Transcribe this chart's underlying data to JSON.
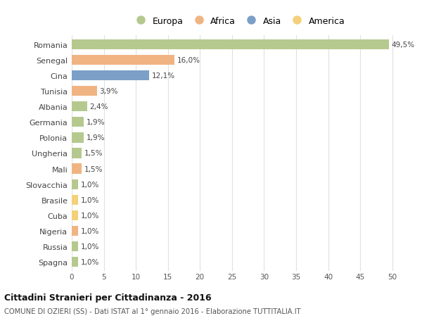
{
  "countries": [
    "Romania",
    "Senegal",
    "Cina",
    "Tunisia",
    "Albania",
    "Germania",
    "Polonia",
    "Ungheria",
    "Mali",
    "Slovacchia",
    "Brasile",
    "Cuba",
    "Nigeria",
    "Russia",
    "Spagna"
  ],
  "values": [
    49.5,
    16.0,
    12.1,
    3.9,
    2.4,
    1.9,
    1.9,
    1.5,
    1.5,
    1.0,
    1.0,
    1.0,
    1.0,
    1.0,
    1.0
  ],
  "labels": [
    "49,5%",
    "16,0%",
    "12,1%",
    "3,9%",
    "2,4%",
    "1,9%",
    "1,9%",
    "1,5%",
    "1,5%",
    "1,0%",
    "1,0%",
    "1,0%",
    "1,0%",
    "1,0%",
    "1,0%"
  ],
  "continents": [
    "Europa",
    "Africa",
    "Asia",
    "Africa",
    "Europa",
    "Europa",
    "Europa",
    "Europa",
    "Africa",
    "Europa",
    "America",
    "America",
    "Africa",
    "Europa",
    "Europa"
  ],
  "continent_colors": {
    "Europa": "#b5c98e",
    "Africa": "#f0b482",
    "Asia": "#7b9fc7",
    "America": "#f5d07a"
  },
  "legend_order": [
    "Europa",
    "Africa",
    "Asia",
    "America"
  ],
  "title": "Cittadini Stranieri per Cittadinanza - 2016",
  "subtitle": "COMUNE DI OZIERI (SS) - Dati ISTAT al 1° gennaio 2016 - Elaborazione TUTTITALIA.IT",
  "xlim": [
    0,
    52
  ],
  "xticks": [
    0,
    5,
    10,
    15,
    20,
    25,
    30,
    35,
    40,
    45,
    50
  ],
  "bg_color": "#ffffff",
  "grid_color": "#e0e0e0",
  "bar_height": 0.65
}
